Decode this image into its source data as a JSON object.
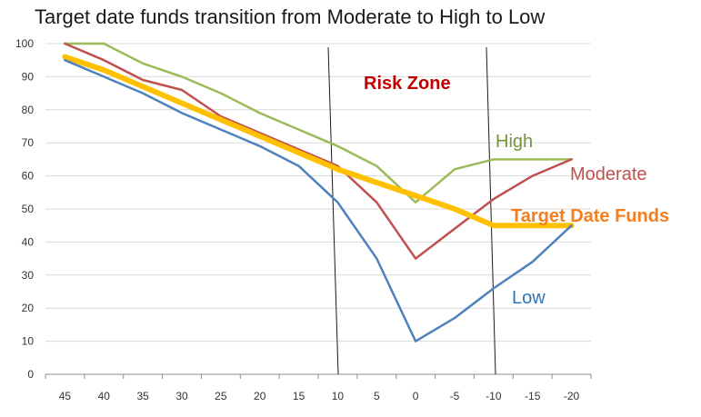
{
  "chart_data": {
    "type": "line",
    "title": "Target date funds transition from Moderate to High to Low",
    "xlabel": "",
    "ylabel": "",
    "categories": [
      "45",
      "40",
      "35",
      "30",
      "25",
      "20",
      "15",
      "10",
      "5",
      "0",
      "-5",
      "-10",
      "-15",
      "-20"
    ],
    "ylim": [
      0,
      100
    ],
    "yticks": [
      0,
      10,
      20,
      30,
      40,
      50,
      60,
      70,
      80,
      90,
      100
    ],
    "grid": true,
    "legend": "none",
    "series": [
      {
        "name": "High",
        "color": "#9BBB59",
        "width": 2.5,
        "values": [
          100,
          100,
          94,
          90,
          85,
          79,
          74,
          69,
          63,
          52,
          62,
          65,
          65,
          65
        ]
      },
      {
        "name": "Moderate",
        "color": "#C0504D",
        "width": 2.5,
        "values": [
          100,
          95,
          89,
          86,
          78,
          73,
          68,
          63,
          52,
          35,
          44,
          53,
          60,
          65
        ]
      },
      {
        "name": "Target Date Funds",
        "color": "#FFC000",
        "width": 6,
        "values": [
          96,
          92,
          87,
          82,
          77,
          72,
          67,
          62,
          58,
          54,
          50,
          45,
          45,
          45
        ]
      },
      {
        "name": "Low",
        "color": "#4F81BD",
        "width": 2.5,
        "values": [
          95,
          90,
          85,
          79,
          74,
          69,
          63,
          52,
          35,
          10,
          17,
          26,
          34,
          45
        ]
      }
    ],
    "annotations": [
      {
        "text": "Risk Zone",
        "color": "#C00000"
      },
      {
        "text": "High",
        "color": "#77933C"
      },
      {
        "text": "Moderate",
        "color": "#C0504D"
      },
      {
        "text": "Target Date Funds",
        "color": "#F57F20"
      },
      {
        "text": "Low",
        "color": "#2E75B6"
      }
    ]
  }
}
